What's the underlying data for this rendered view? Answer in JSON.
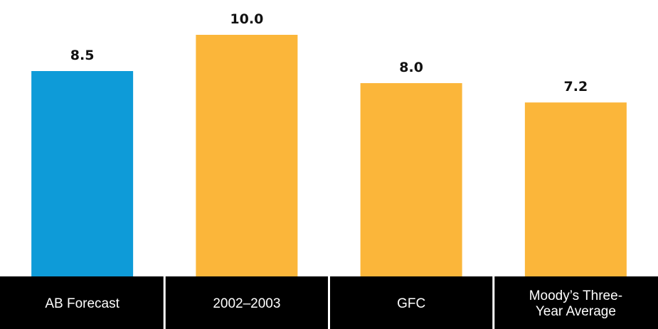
{
  "chart_data": {
    "type": "bar",
    "categories": [
      "AB Forecast",
      "2002–2003",
      "GFC",
      "Moody’s Three-Year Average"
    ],
    "category_lines": [
      [
        "AB Forecast"
      ],
      [
        "2002–2003"
      ],
      [
        "GFC"
      ],
      [
        "Moody’s Three-",
        "Year Average"
      ]
    ],
    "values": [
      8.5,
      10.0,
      8.0,
      7.2
    ],
    "value_labels": [
      "8.5",
      "10.0",
      "8.0",
      "7.2"
    ],
    "bar_colors": [
      "#0e9bd8",
      "#fbb63a",
      "#fbb63a",
      "#fbb63a"
    ],
    "category_band_color": "#000000",
    "title": "",
    "xlabel": "",
    "ylabel": "",
    "ylim": [
      0,
      11.1
    ],
    "grid": false,
    "legend": "none"
  }
}
